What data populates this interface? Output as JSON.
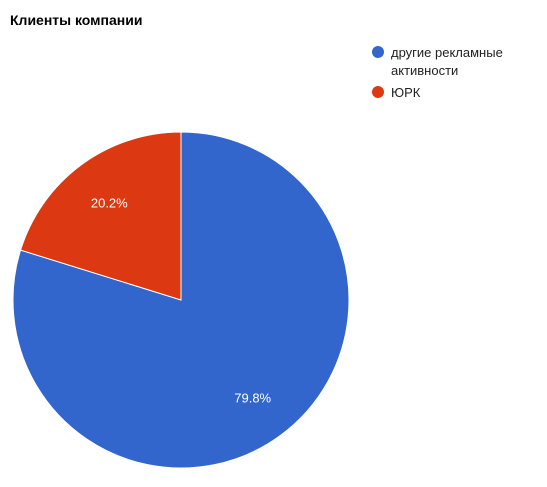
{
  "chart_data": {
    "type": "pie",
    "title": "Клиенты компании",
    "slices": [
      {
        "label": "другие рекламные активности",
        "label_lines": [
          "другие рекламные",
          "активности"
        ],
        "value": 79.8,
        "display": "79.8%",
        "color": "#3366cc"
      },
      {
        "label": "ЮРК",
        "label_lines": [
          "ЮРК"
        ],
        "value": 20.2,
        "display": "20.2%",
        "color": "#dc3912"
      }
    ],
    "legend": {
      "position": "right"
    }
  }
}
